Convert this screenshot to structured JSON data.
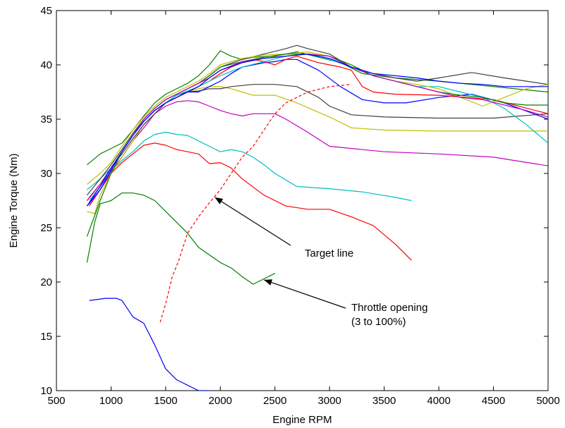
{
  "chart_data": {
    "type": "line",
    "title": "",
    "xlabel": "Engine RPM",
    "ylabel": "Engine Torque (Nm)",
    "xlim": [
      500,
      5000
    ],
    "ylim": [
      10,
      45
    ],
    "xticks": [
      500,
      1000,
      1500,
      2000,
      2500,
      3000,
      3500,
      4000,
      4500,
      5000
    ],
    "yticks": [
      10,
      15,
      20,
      25,
      30,
      35,
      40,
      45
    ],
    "grid": false,
    "legend": "none",
    "annotations": [
      {
        "text": "Target line",
        "lines": [
          "Target line"
        ],
        "arrow_to": [
          1950,
          27.8
        ]
      },
      {
        "text": "Throttle opening (3 to 100%)",
        "lines": [
          "Throttle opening",
          "(3 to 100%)"
        ],
        "arrow_to": [
          2400,
          20.2
        ]
      }
    ],
    "series": [
      {
        "color": "#0000ff",
        "style": "solid",
        "x": [
          800,
          950,
          1050,
          1100,
          1200,
          1300,
          1400,
          1500,
          1600,
          1700,
          1800,
          1900
        ],
        "y": [
          18.3,
          18.5,
          18.5,
          18.3,
          16.8,
          16.2,
          14.2,
          12.0,
          11.0,
          10.5,
          10.0,
          10.0
        ]
      },
      {
        "color": "#008000",
        "style": "solid",
        "x": [
          780,
          850,
          900,
          1000,
          1100,
          1200,
          1300,
          1400,
          1500,
          1600,
          1700,
          1800,
          1900,
          2000,
          2100,
          2200,
          2300,
          2400,
          2500
        ],
        "y": [
          21.8,
          25.5,
          27.2,
          27.5,
          28.2,
          28.2,
          28.0,
          27.5,
          26.5,
          25.5,
          24.5,
          23.2,
          22.5,
          21.8,
          21.3,
          20.5,
          19.8,
          20.3,
          20.8
        ]
      },
      {
        "color": "#ff0000",
        "style": "solid",
        "x": [
          800,
          900,
          1000,
          1100,
          1200,
          1300,
          1400,
          1500,
          1600,
          1700,
          1800,
          1900,
          2000,
          2100,
          2200,
          2400,
          2600,
          2800,
          3000,
          3200,
          3400,
          3600,
          3750
        ],
        "y": [
          27.0,
          28.5,
          30.0,
          31.0,
          31.8,
          32.6,
          32.8,
          32.6,
          32.2,
          32.0,
          31.8,
          30.9,
          31.0,
          30.5,
          29.5,
          28.0,
          27.0,
          26.7,
          26.7,
          26.0,
          25.2,
          23.5,
          22.0
        ]
      },
      {
        "color": "#00bfbf",
        "style": "solid",
        "x": [
          800,
          900,
          1000,
          1100,
          1200,
          1300,
          1400,
          1500,
          1600,
          1700,
          1800,
          1900,
          2000,
          2100,
          2200,
          2300,
          2400,
          2500,
          2700,
          3000,
          3300,
          3600,
          3750
        ],
        "y": [
          27.5,
          28.8,
          30.2,
          31.2,
          32.0,
          33.0,
          33.6,
          33.8,
          33.6,
          33.5,
          33.0,
          32.5,
          32.0,
          32.2,
          32.0,
          31.5,
          30.8,
          30.0,
          28.8,
          28.6,
          28.3,
          27.8,
          27.5
        ]
      },
      {
        "color": "#bf00bf",
        "style": "solid",
        "x": [
          800,
          900,
          1000,
          1100,
          1200,
          1300,
          1400,
          1500,
          1600,
          1700,
          1800,
          1900,
          2000,
          2100,
          2200,
          2300,
          2400,
          2500,
          2600,
          2800,
          3000,
          3500,
          4000,
          4500,
          5000
        ],
        "y": [
          27.2,
          28.5,
          30.2,
          31.5,
          33.0,
          34.2,
          35.5,
          36.2,
          36.6,
          36.7,
          36.6,
          36.2,
          35.8,
          35.5,
          35.3,
          35.5,
          35.5,
          35.5,
          35.0,
          33.8,
          32.5,
          32.0,
          31.8,
          31.5,
          30.7
        ]
      },
      {
        "color": "#bfbf00",
        "style": "solid",
        "x": [
          780,
          850,
          900,
          1000,
          1100,
          1200,
          1300,
          1400,
          1500,
          1600,
          1700,
          1800,
          1900,
          2000,
          2100,
          2200,
          2300,
          2500,
          2700,
          3000,
          3200,
          3500,
          4000,
          4500,
          5000
        ],
        "y": [
          26.5,
          26.3,
          28.0,
          30.0,
          31.5,
          33.0,
          34.5,
          35.5,
          36.5,
          37.0,
          37.5,
          37.8,
          38.0,
          38.0,
          37.8,
          37.5,
          37.2,
          37.2,
          36.5,
          35.2,
          34.2,
          34.0,
          33.9,
          33.9,
          33.9
        ]
      },
      {
        "color": "#404040",
        "style": "solid",
        "x": [
          800,
          900,
          1000,
          1100,
          1200,
          1300,
          1400,
          1500,
          1600,
          1700,
          1800,
          1900,
          2000,
          2100,
          2200,
          2300,
          2500,
          2700,
          2900,
          3000,
          3100,
          3200,
          3500,
          4000,
          4500,
          5000
        ],
        "y": [
          27.8,
          29.0,
          30.5,
          31.8,
          33.2,
          34.5,
          35.5,
          36.5,
          37.0,
          37.5,
          37.6,
          37.8,
          37.8,
          38.0,
          38.1,
          38.2,
          38.2,
          38.0,
          37.0,
          36.2,
          35.8,
          35.4,
          35.2,
          35.1,
          35.1,
          35.5
        ]
      },
      {
        "color": "#008000",
        "style": "solid",
        "x": [
          780,
          900,
          1000,
          1100,
          1200,
          1300,
          1400,
          1500,
          1600,
          1700,
          1800,
          1900,
          2000,
          2100,
          2200,
          2300,
          2500,
          2700,
          2900,
          3100,
          3300,
          3600,
          4000,
          4500,
          5000
        ],
        "y": [
          30.8,
          31.8,
          32.3,
          32.8,
          34.0,
          35.3,
          36.5,
          37.3,
          37.8,
          38.3,
          39.0,
          40.0,
          41.3,
          40.8,
          40.5,
          40.7,
          40.8,
          41.2,
          40.7,
          40.2,
          39.2,
          38.8,
          38.5,
          38.0,
          37.5
        ]
      },
      {
        "color": "#0000ff",
        "style": "solid",
        "x": [
          780,
          900,
          1000,
          1100,
          1200,
          1300,
          1400,
          1500,
          1600,
          1700,
          1800,
          1900,
          2000,
          2100,
          2200,
          2300,
          2400,
          2500,
          2600,
          2700,
          2900,
          3100,
          3300,
          3500,
          3700,
          4000,
          4300,
          4600,
          5000
        ],
        "y": [
          27.0,
          28.5,
          30.3,
          32.0,
          33.5,
          34.8,
          35.8,
          36.5,
          37.2,
          37.5,
          37.5,
          38.0,
          38.5,
          39.2,
          39.8,
          40.0,
          40.2,
          40.3,
          40.5,
          40.5,
          39.5,
          38.0,
          36.8,
          36.5,
          36.5,
          37.0,
          37.3,
          36.5,
          35.0
        ]
      },
      {
        "color": "#ff0000",
        "style": "solid",
        "x": [
          780,
          900,
          1000,
          1100,
          1200,
          1300,
          1400,
          1500,
          1600,
          1700,
          1800,
          1900,
          2000,
          2100,
          2200,
          2300,
          2400,
          2500,
          2600,
          2700,
          2800,
          2900,
          3000,
          3100,
          3200,
          3300,
          3400,
          3600,
          4000,
          4500,
          5000
        ],
        "y": [
          27.5,
          29.0,
          30.5,
          32.0,
          33.5,
          34.8,
          35.8,
          36.5,
          37.0,
          37.5,
          38.0,
          38.5,
          39.2,
          39.8,
          40.2,
          40.5,
          40.3,
          40.0,
          40.5,
          40.8,
          40.5,
          40.2,
          40.0,
          39.8,
          39.5,
          38.0,
          37.5,
          37.3,
          37.2,
          36.8,
          35.5
        ]
      },
      {
        "color": "#00bfbf",
        "style": "solid",
        "x": [
          780,
          900,
          1000,
          1100,
          1200,
          1300,
          1400,
          1500,
          1600,
          1700,
          1800,
          1900,
          2000,
          2200,
          2400,
          2600,
          2800,
          3000,
          3200,
          3400,
          3600,
          3800,
          4000,
          4200,
          4400,
          4600,
          4800,
          5000
        ],
        "y": [
          28.5,
          29.5,
          30.5,
          32.0,
          33.5,
          34.8,
          35.8,
          36.5,
          37.2,
          37.6,
          38.0,
          38.5,
          39.0,
          39.8,
          40.3,
          40.8,
          41.0,
          40.5,
          39.8,
          39.0,
          38.5,
          38.0,
          38.0,
          37.5,
          37.0,
          36.0,
          34.5,
          32.8
        ]
      },
      {
        "color": "#404040",
        "style": "solid",
        "x": [
          780,
          900,
          1000,
          1100,
          1200,
          1300,
          1400,
          1500,
          1600,
          1700,
          1800,
          1900,
          2000,
          2200,
          2400,
          2600,
          2700,
          2800,
          3000,
          3200,
          3400,
          3600,
          3800,
          4000,
          4300,
          4600,
          5000
        ],
        "y": [
          28.0,
          29.5,
          30.8,
          32.2,
          33.7,
          35.0,
          36.0,
          36.8,
          37.3,
          37.8,
          38.3,
          39.0,
          39.8,
          40.5,
          41.0,
          41.5,
          41.8,
          41.5,
          41.0,
          39.8,
          39.2,
          38.8,
          38.5,
          38.8,
          39.3,
          38.8,
          38.2
        ]
      },
      {
        "color": "#bfbf00",
        "style": "solid",
        "x": [
          780,
          900,
          1000,
          1100,
          1200,
          1300,
          1400,
          1500,
          1600,
          1700,
          1800,
          1900,
          2000,
          2200,
          2400,
          2600,
          2800,
          3000,
          3200,
          3400,
          3600,
          3800,
          4000,
          4200,
          4400,
          4600,
          4800,
          5000
        ],
        "y": [
          29.0,
          30.0,
          31.0,
          32.5,
          34.0,
          35.2,
          36.2,
          37.0,
          37.5,
          38.0,
          38.5,
          39.2,
          40.0,
          40.6,
          40.9,
          41.0,
          41.2,
          40.8,
          39.8,
          39.0,
          38.5,
          38.2,
          37.8,
          37.0,
          36.2,
          37.0,
          37.8,
          38.2
        ]
      },
      {
        "color": "#008000",
        "style": "solid",
        "x": [
          780,
          900,
          1000,
          1100,
          1200,
          1300,
          1400,
          1500,
          1600,
          1700,
          1800,
          1900,
          2000,
          2200,
          2400,
          2600,
          2800,
          3000,
          3200,
          3400,
          3600,
          3800,
          4000,
          4200,
          4400,
          4600,
          4800,
          5000
        ],
        "y": [
          24.2,
          27.5,
          30.0,
          32.0,
          33.5,
          35.0,
          36.0,
          36.8,
          37.3,
          37.8,
          38.3,
          39.0,
          39.8,
          40.3,
          40.7,
          41.0,
          41.0,
          40.8,
          40.0,
          39.0,
          38.5,
          38.0,
          37.5,
          37.2,
          37.0,
          36.5,
          36.3,
          36.3
        ]
      },
      {
        "color": "#bf00bf",
        "style": "solid",
        "x": [
          780,
          900,
          1000,
          1100,
          1200,
          1300,
          1400,
          1500,
          1600,
          1700,
          1800,
          1900,
          2000,
          2200,
          2400,
          2600,
          2800,
          3000,
          3200,
          3400,
          3600,
          3800,
          4000,
          4200,
          4400,
          4600,
          4800,
          5000
        ],
        "y": [
          27.5,
          29.0,
          30.5,
          32.0,
          33.5,
          35.0,
          36.0,
          36.8,
          37.3,
          37.8,
          38.3,
          38.8,
          39.5,
          40.3,
          40.6,
          40.8,
          41.0,
          40.8,
          39.8,
          39.0,
          38.5,
          38.0,
          37.5,
          37.0,
          36.8,
          36.3,
          35.8,
          35.2
        ]
      },
      {
        "color": "#0000ff",
        "style": "solid",
        "x": [
          780,
          900,
          1000,
          1100,
          1200,
          1300,
          1400,
          1500,
          1600,
          1700,
          1800,
          1900,
          2000,
          2200,
          2400,
          2600,
          2800,
          3000,
          3200,
          3400,
          3600,
          3800,
          4000,
          4200,
          4400,
          4600,
          4800,
          5000
        ],
        "y": [
          27.0,
          28.8,
          30.5,
          32.0,
          33.5,
          34.8,
          35.8,
          36.5,
          37.0,
          37.5,
          38.0,
          38.8,
          39.5,
          40.2,
          40.6,
          40.8,
          41.0,
          40.6,
          39.8,
          39.2,
          39.0,
          38.8,
          38.5,
          38.3,
          38.2,
          38.0,
          38.0,
          38.0
        ]
      },
      {
        "color": "#ff0000",
        "style": "dashed",
        "x": [
          1450,
          1500,
          1560,
          1620,
          1700,
          1800,
          1900,
          2000,
          2100,
          2200,
          2300,
          2400,
          2500,
          2600,
          2800,
          3000,
          3200
        ],
        "y": [
          16.3,
          18.0,
          20.5,
          22.0,
          24.5,
          26.0,
          27.3,
          28.5,
          30.0,
          31.5,
          32.5,
          34.0,
          35.5,
          36.5,
          37.5,
          38.0,
          38.2
        ]
      }
    ]
  }
}
